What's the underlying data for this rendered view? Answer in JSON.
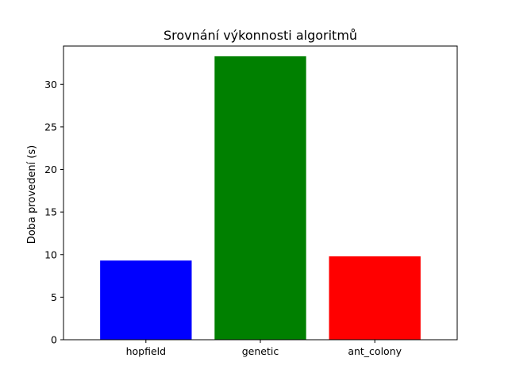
{
  "chart_data": {
    "type": "bar",
    "title": "Srovnání výkonnosti algoritmů",
    "xlabel": "",
    "ylabel": "Doba provedení (s)",
    "categories": [
      "hopfield",
      "genetic",
      "ant_colony"
    ],
    "values": [
      9.3,
      33.3,
      9.8
    ],
    "colors": [
      "#0000ff",
      "#008000",
      "#ff0000"
    ],
    "ylim": [
      0,
      34.5
    ],
    "yticks": [
      0,
      5,
      10,
      15,
      20,
      25,
      30
    ],
    "grid": false,
    "legend": "none"
  }
}
